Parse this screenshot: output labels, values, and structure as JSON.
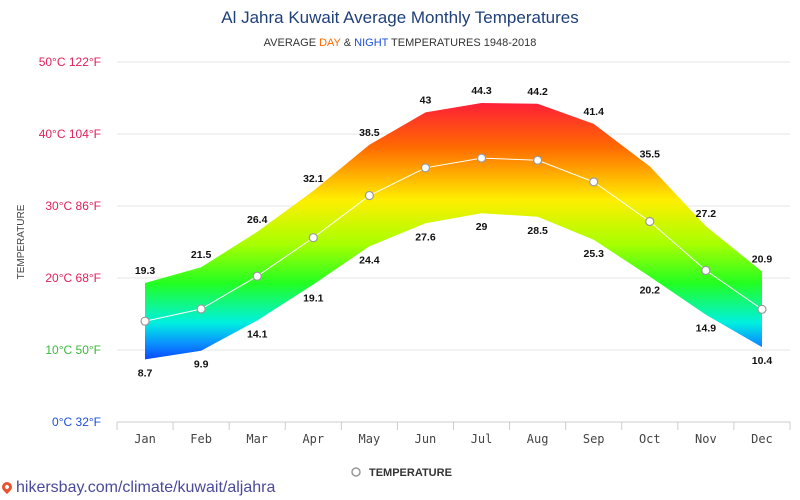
{
  "title": "Al Jahra Kuwait Average Monthly Temperatures",
  "subtitle": {
    "prefix": "AVERAGE ",
    "day": "DAY",
    "amp": " & ",
    "night": "NIGHT",
    "suffix": " TEMPERATURES 1948-2018"
  },
  "footer": {
    "url": "hikersbay.com/climate/kuwait/aljahra"
  },
  "legend": {
    "label": "TEMPERATURE"
  },
  "colors": {
    "title": "#1f3f7a",
    "day": "#ff6a00",
    "night": "#1e4fd8",
    "grid": "#e6e6e6",
    "line": "#ffffff",
    "hot": "#ff1a3c",
    "cold": "#0b3bff"
  },
  "chart_data": {
    "type": "area",
    "title": "Al Jahra Kuwait Average Monthly Temperatures",
    "subtitle": "AVERAGE DAY & NIGHT TEMPERATURES 1948-2018",
    "ylabel": "TEMPERATURE",
    "xlabel": "",
    "categories": [
      "Jan",
      "Feb",
      "Mar",
      "Apr",
      "May",
      "Jun",
      "Jul",
      "Aug",
      "Sep",
      "Oct",
      "Nov",
      "Dec"
    ],
    "ylim": [
      0,
      50
    ],
    "yticks": [
      {
        "value": 0,
        "label": "0°C 32°F",
        "color": "#1e4fd8"
      },
      {
        "value": 10,
        "label": "10°C 50°F",
        "color": "#3cb83c"
      },
      {
        "value": 20,
        "label": "20°C 68°F",
        "color": "#e0205a"
      },
      {
        "value": 30,
        "label": "30°C 86°F",
        "color": "#e0205a"
      },
      {
        "value": 40,
        "label": "40°C 104°F",
        "color": "#e0205a"
      },
      {
        "value": 50,
        "label": "50°C 122°F",
        "color": "#e0205a"
      }
    ],
    "series": [
      {
        "name": "DAY",
        "values": [
          19.3,
          21.5,
          26.4,
          32.1,
          38.5,
          43,
          44.3,
          44.2,
          41.4,
          35.5,
          27.2,
          20.9
        ]
      },
      {
        "name": "NIGHT",
        "values": [
          8.7,
          9.9,
          14.1,
          19.1,
          24.4,
          27.6,
          29,
          28.5,
          25.3,
          20.2,
          14.9,
          10.4
        ]
      },
      {
        "name": "TEMPERATURE",
        "values": [
          14,
          15.7,
          20.25,
          25.6,
          31.45,
          35.3,
          36.65,
          36.35,
          33.35,
          27.85,
          21.05,
          15.65
        ]
      }
    ],
    "grid": true,
    "legend_position": "bottom-center"
  }
}
